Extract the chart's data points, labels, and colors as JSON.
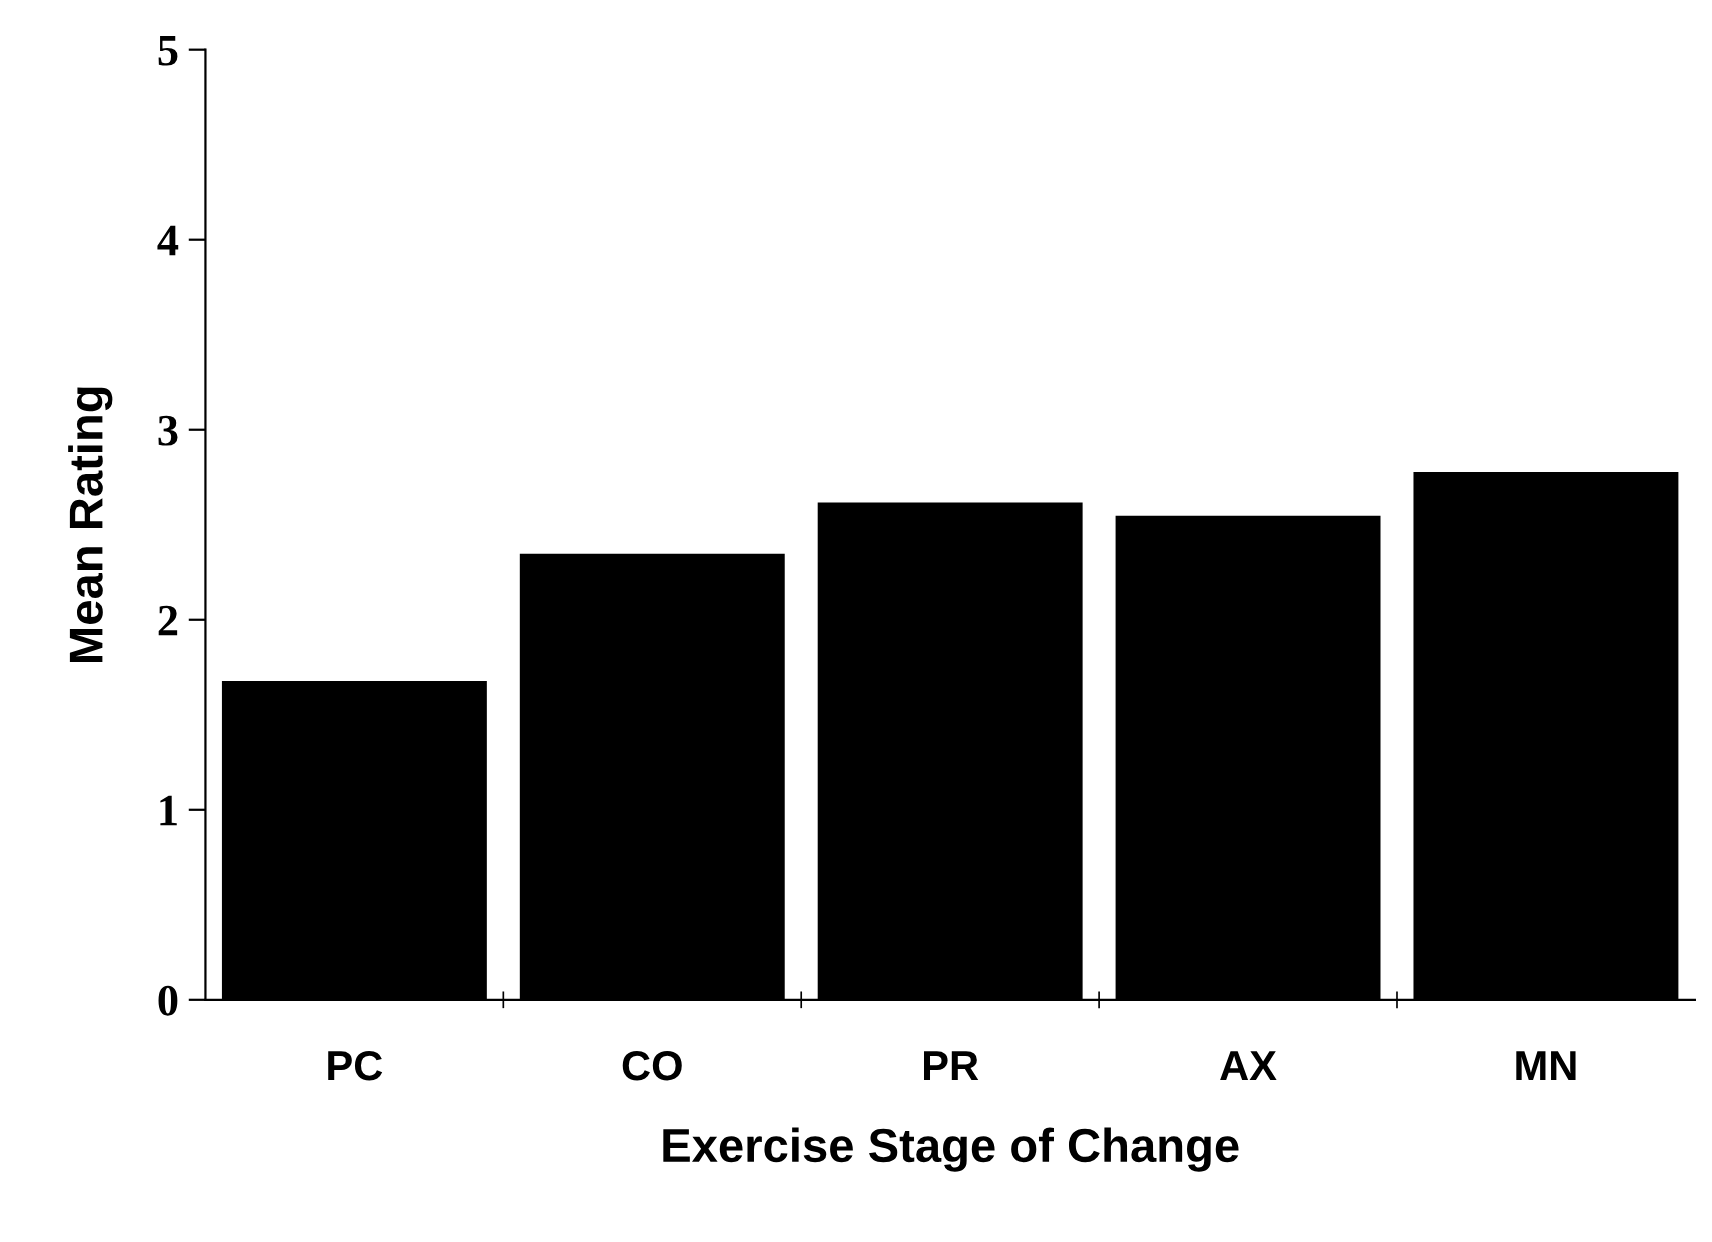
{
  "chart_data": {
    "type": "bar",
    "xlabel": "Exercise Stage of Change",
    "ylabel": "Mean Rating",
    "categories": [
      "PC",
      "CO",
      "PR",
      "AX",
      "MN"
    ],
    "values": [
      1.67,
      2.34,
      2.61,
      2.54,
      2.77
    ],
    "color": "#000000",
    "ylim": [
      0,
      5
    ],
    "yticks": [
      0,
      1,
      2,
      3,
      4,
      5
    ],
    "grid": false
  }
}
